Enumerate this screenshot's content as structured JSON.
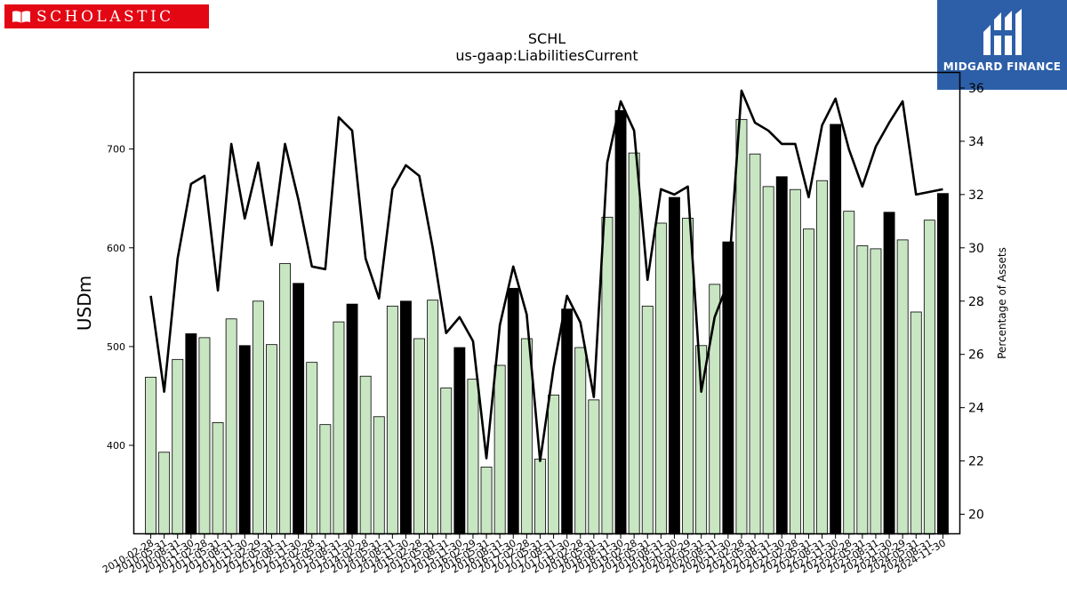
{
  "brand": {
    "left_logo": "SCHOLASTIC",
    "right_logo": "MIDGARD FINANCE"
  },
  "colors": {
    "bar_light": "#c8e6c2",
    "bar_dark": "#000000",
    "line": "#000000",
    "logo_red": "#e30613",
    "logo_blue": "#2d5fa8"
  },
  "chart_data": {
    "type": "bar",
    "title": "SCHL",
    "subtitle": "us-gaap:LiabilitiesCurrent",
    "ylabel": "USDm",
    "y2label": "Percentage of Assets",
    "ylim": [
      310,
      778
    ],
    "y2lim": [
      19.25,
      36.6
    ],
    "yticks": [
      400,
      500,
      600,
      700
    ],
    "y2ticks": [
      20,
      22,
      24,
      26,
      28,
      30,
      32,
      34,
      36
    ],
    "categories": [
      "2010-02-28",
      "2010-05-31",
      "2010-08-31",
      "2010-11-30",
      "2011-02-28",
      "2011-05-31",
      "2011-08-31",
      "2011-11-30",
      "2012-02-29",
      "2012-05-31",
      "2012-08-31",
      "2012-11-30",
      "2013-02-28",
      "2013-05-31",
      "2013-08-31",
      "2013-11-30",
      "2014-02-28",
      "2014-05-31",
      "2014-08-31",
      "2014-11-30",
      "2015-02-28",
      "2015-05-31",
      "2015-08-31",
      "2015-11-30",
      "2016-02-29",
      "2016-05-31",
      "2016-08-31",
      "2016-11-30",
      "2017-02-28",
      "2017-05-31",
      "2017-08-31",
      "2017-11-30",
      "2018-02-28",
      "2018-05-31",
      "2018-08-31",
      "2018-11-30",
      "2019-02-28",
      "2019-05-31",
      "2019-08-31",
      "2019-11-30",
      "2020-02-29",
      "2020-05-31",
      "2020-08-31",
      "2020-11-30",
      "2021-02-28",
      "2021-05-31",
      "2021-08-31",
      "2021-11-30",
      "2022-02-28",
      "2022-05-31",
      "2022-08-31",
      "2022-11-30",
      "2023-02-28",
      "2023-05-31",
      "2023-08-31",
      "2023-11-30",
      "2024-02-29",
      "2024-05-31",
      "2024-08-31",
      "2024-11-30"
    ],
    "series": [
      {
        "type": "bar",
        "axis": "left",
        "values": [
          469,
          393,
          487,
          513,
          509,
          423,
          528,
          501,
          546,
          502,
          584,
          564,
          484,
          421,
          525,
          543,
          470,
          429,
          541,
          546,
          508,
          547,
          458,
          499,
          467,
          378,
          481,
          559,
          508,
          386,
          451,
          538,
          499,
          446,
          631,
          739,
          696,
          541,
          625,
          651,
          630,
          501,
          563,
          606,
          730,
          695,
          662,
          672,
          659,
          619,
          668,
          725,
          637,
          602,
          599,
          636,
          608,
          535,
          628,
          655
        ],
        "highlight": [
          false,
          false,
          false,
          true,
          false,
          false,
          false,
          true,
          false,
          false,
          false,
          true,
          false,
          false,
          false,
          true,
          false,
          false,
          false,
          true,
          false,
          false,
          false,
          true,
          false,
          false,
          false,
          true,
          false,
          false,
          false,
          true,
          false,
          false,
          false,
          true,
          false,
          false,
          false,
          true,
          false,
          false,
          false,
          true,
          false,
          false,
          false,
          true,
          false,
          false,
          false,
          true,
          false,
          false,
          false,
          true,
          false,
          false,
          false,
          true
        ]
      },
      {
        "type": "line",
        "axis": "right",
        "values": [
          28.2,
          24.6,
          29.6,
          32.4,
          32.7,
          28.4,
          33.9,
          31.1,
          33.2,
          30.1,
          33.9,
          31.8,
          29.3,
          29.2,
          34.9,
          34.4,
          29.6,
          28.1,
          32.2,
          33.1,
          32.7,
          30.0,
          26.8,
          27.4,
          26.5,
          22.1,
          27.1,
          29.3,
          27.5,
          22.0,
          25.5,
          28.2,
          27.2,
          24.4,
          33.2,
          35.5,
          34.4,
          28.8,
          32.2,
          32.0,
          32.3,
          24.6,
          27.4,
          28.7,
          35.9,
          34.7,
          34.4,
          33.9,
          33.9,
          31.9,
          34.6,
          35.6,
          33.7,
          32.3,
          33.8,
          34.7,
          35.5,
          32.0,
          32.1,
          32.2
        ]
      }
    ]
  }
}
